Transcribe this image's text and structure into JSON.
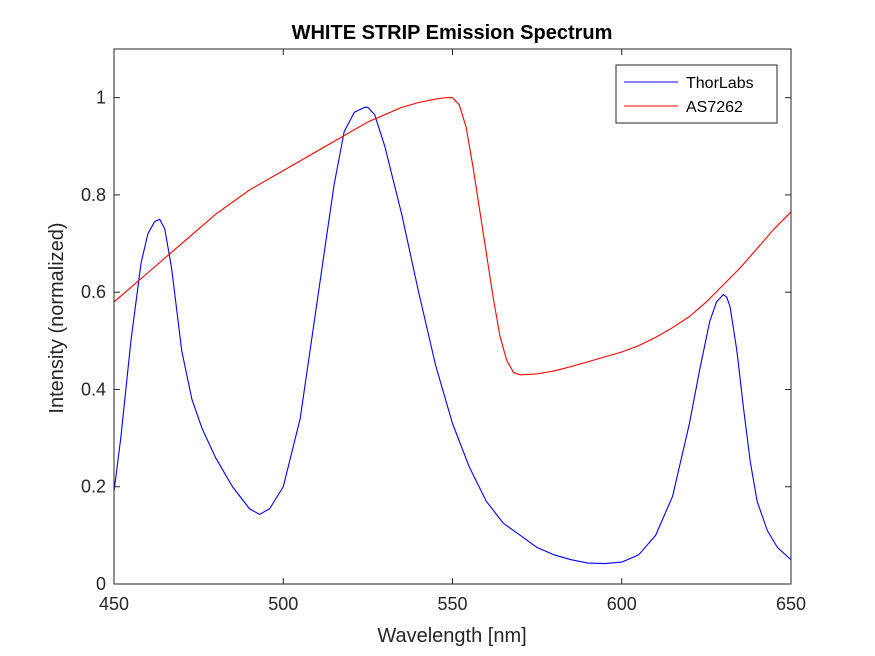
{
  "chart_data": {
    "type": "line",
    "title": "WHITE STRIP Emission Spectrum",
    "xlabel": "Wavelength [nm]",
    "ylabel": "Intensity (normalized)",
    "xlim": [
      450,
      650
    ],
    "ylim": [
      0,
      1.1
    ],
    "xticks": [
      450,
      500,
      550,
      600,
      650
    ],
    "yticks": [
      0,
      0.2,
      0.4,
      0.6,
      0.8,
      1
    ],
    "ytick_labels": [
      "0",
      "0.2",
      "0.4",
      "0.6",
      "0.8",
      "1"
    ],
    "grid": false,
    "legend_position": "top-right",
    "series": [
      {
        "name": "ThorLabs",
        "color": "#0000ff",
        "x": [
          450,
          452,
          455,
          458,
          460,
          462,
          463.5,
          465,
          467,
          470,
          473,
          476,
          480,
          485,
          490,
          493,
          496,
          500,
          505,
          510,
          515,
          518,
          521,
          524,
          525,
          527,
          530,
          535,
          540,
          545,
          550,
          555,
          560,
          565,
          570,
          575,
          580,
          585,
          590,
          595,
          600,
          605,
          610,
          615,
          620,
          623,
          626,
          628,
          630,
          631,
          632,
          634,
          636,
          638,
          640,
          643,
          646,
          650
        ],
        "y": [
          0.19,
          0.3,
          0.5,
          0.66,
          0.72,
          0.745,
          0.75,
          0.73,
          0.65,
          0.48,
          0.38,
          0.32,
          0.26,
          0.2,
          0.155,
          0.143,
          0.155,
          0.2,
          0.34,
          0.58,
          0.82,
          0.93,
          0.97,
          0.98,
          0.98,
          0.965,
          0.9,
          0.76,
          0.6,
          0.45,
          0.33,
          0.24,
          0.17,
          0.125,
          0.1,
          0.075,
          0.06,
          0.05,
          0.043,
          0.042,
          0.045,
          0.06,
          0.1,
          0.18,
          0.33,
          0.44,
          0.54,
          0.58,
          0.595,
          0.59,
          0.57,
          0.48,
          0.36,
          0.25,
          0.17,
          0.11,
          0.075,
          0.05
        ]
      },
      {
        "name": "AS7262",
        "color": "#ff0000",
        "x": [
          450,
          455,
          460,
          465,
          470,
          475,
          480,
          485,
          490,
          495,
          500,
          505,
          510,
          515,
          520,
          525,
          530,
          535,
          540,
          545,
          548,
          550,
          552,
          554,
          556,
          558,
          560,
          562,
          564,
          566,
          568,
          570,
          575,
          580,
          585,
          590,
          595,
          600,
          605,
          610,
          615,
          620,
          625,
          630,
          635,
          640,
          645,
          650
        ],
        "y": [
          0.58,
          0.61,
          0.64,
          0.67,
          0.7,
          0.73,
          0.76,
          0.785,
          0.81,
          0.83,
          0.85,
          0.87,
          0.89,
          0.91,
          0.93,
          0.95,
          0.965,
          0.98,
          0.99,
          0.997,
          1.0,
          1.0,
          0.985,
          0.94,
          0.86,
          0.77,
          0.68,
          0.59,
          0.51,
          0.46,
          0.435,
          0.43,
          0.432,
          0.438,
          0.447,
          0.457,
          0.467,
          0.477,
          0.49,
          0.507,
          0.527,
          0.55,
          0.58,
          0.615,
          0.65,
          0.69,
          0.73,
          0.765
        ]
      }
    ]
  }
}
